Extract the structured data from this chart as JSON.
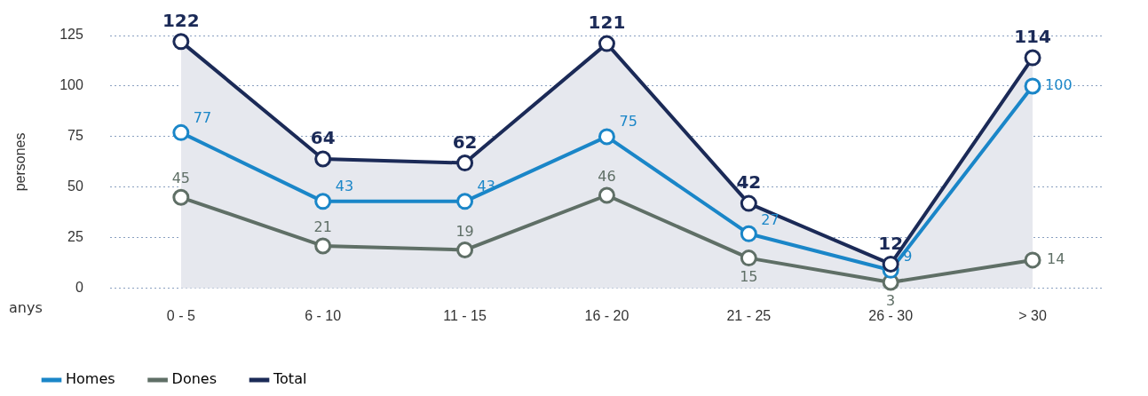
{
  "chart_data": {
    "type": "line",
    "xlabel": "anys",
    "ylabel": "persones",
    "categories": [
      "0 - 5",
      "6 - 10",
      "11 - 15",
      "16 - 20",
      "21 - 25",
      "26 - 30",
      "> 30"
    ],
    "series": [
      {
        "name": "Homes",
        "color": "#1a86c8",
        "values": [
          77,
          43,
          43,
          75,
          27,
          9,
          100
        ]
      },
      {
        "name": "Dones",
        "color": "#5f6f66",
        "values": [
          45,
          21,
          19,
          46,
          15,
          3,
          14
        ]
      },
      {
        "name": "Total",
        "type": "area",
        "color": "#1b2a57",
        "values": [
          122,
          64,
          62,
          121,
          42,
          12,
          114
        ]
      }
    ],
    "ylim": [
      0,
      125
    ],
    "yticks": [
      0,
      25,
      50,
      75,
      100,
      125
    ],
    "grid": "y",
    "legend": "bottom left",
    "marker": "circle",
    "line_style": "solid",
    "data_labels": true
  }
}
